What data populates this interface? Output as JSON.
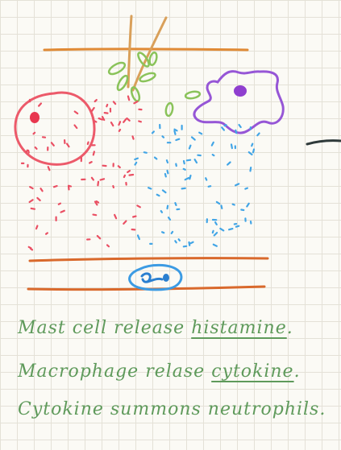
{
  "notes": [
    {
      "before": "Mast cell release ",
      "underlined": "histamine",
      "after": "."
    },
    {
      "before": "Macrophage relase ",
      "underlined": "cytokine",
      "after": "."
    },
    {
      "before": "Cytokine summons neutrophils.",
      "underlined": "",
      "after": ""
    }
  ],
  "colors": {
    "vessel_wall": "#e07a35",
    "needle_tan": "#d9a05a",
    "leaf_green": "#8ac35a",
    "mast_cell_red": "#ec5a6a",
    "histamine_dots": "#ea4f63",
    "macrophage_purple": "#9656d6",
    "macrophage_nucleus": "#8f3fcf",
    "cytokine_dots": "#42a5e6",
    "neutrophil_blue": "#3c9be3",
    "arrow_gray": "#2f3a3a",
    "note_text": "#5f9a5b"
  }
}
